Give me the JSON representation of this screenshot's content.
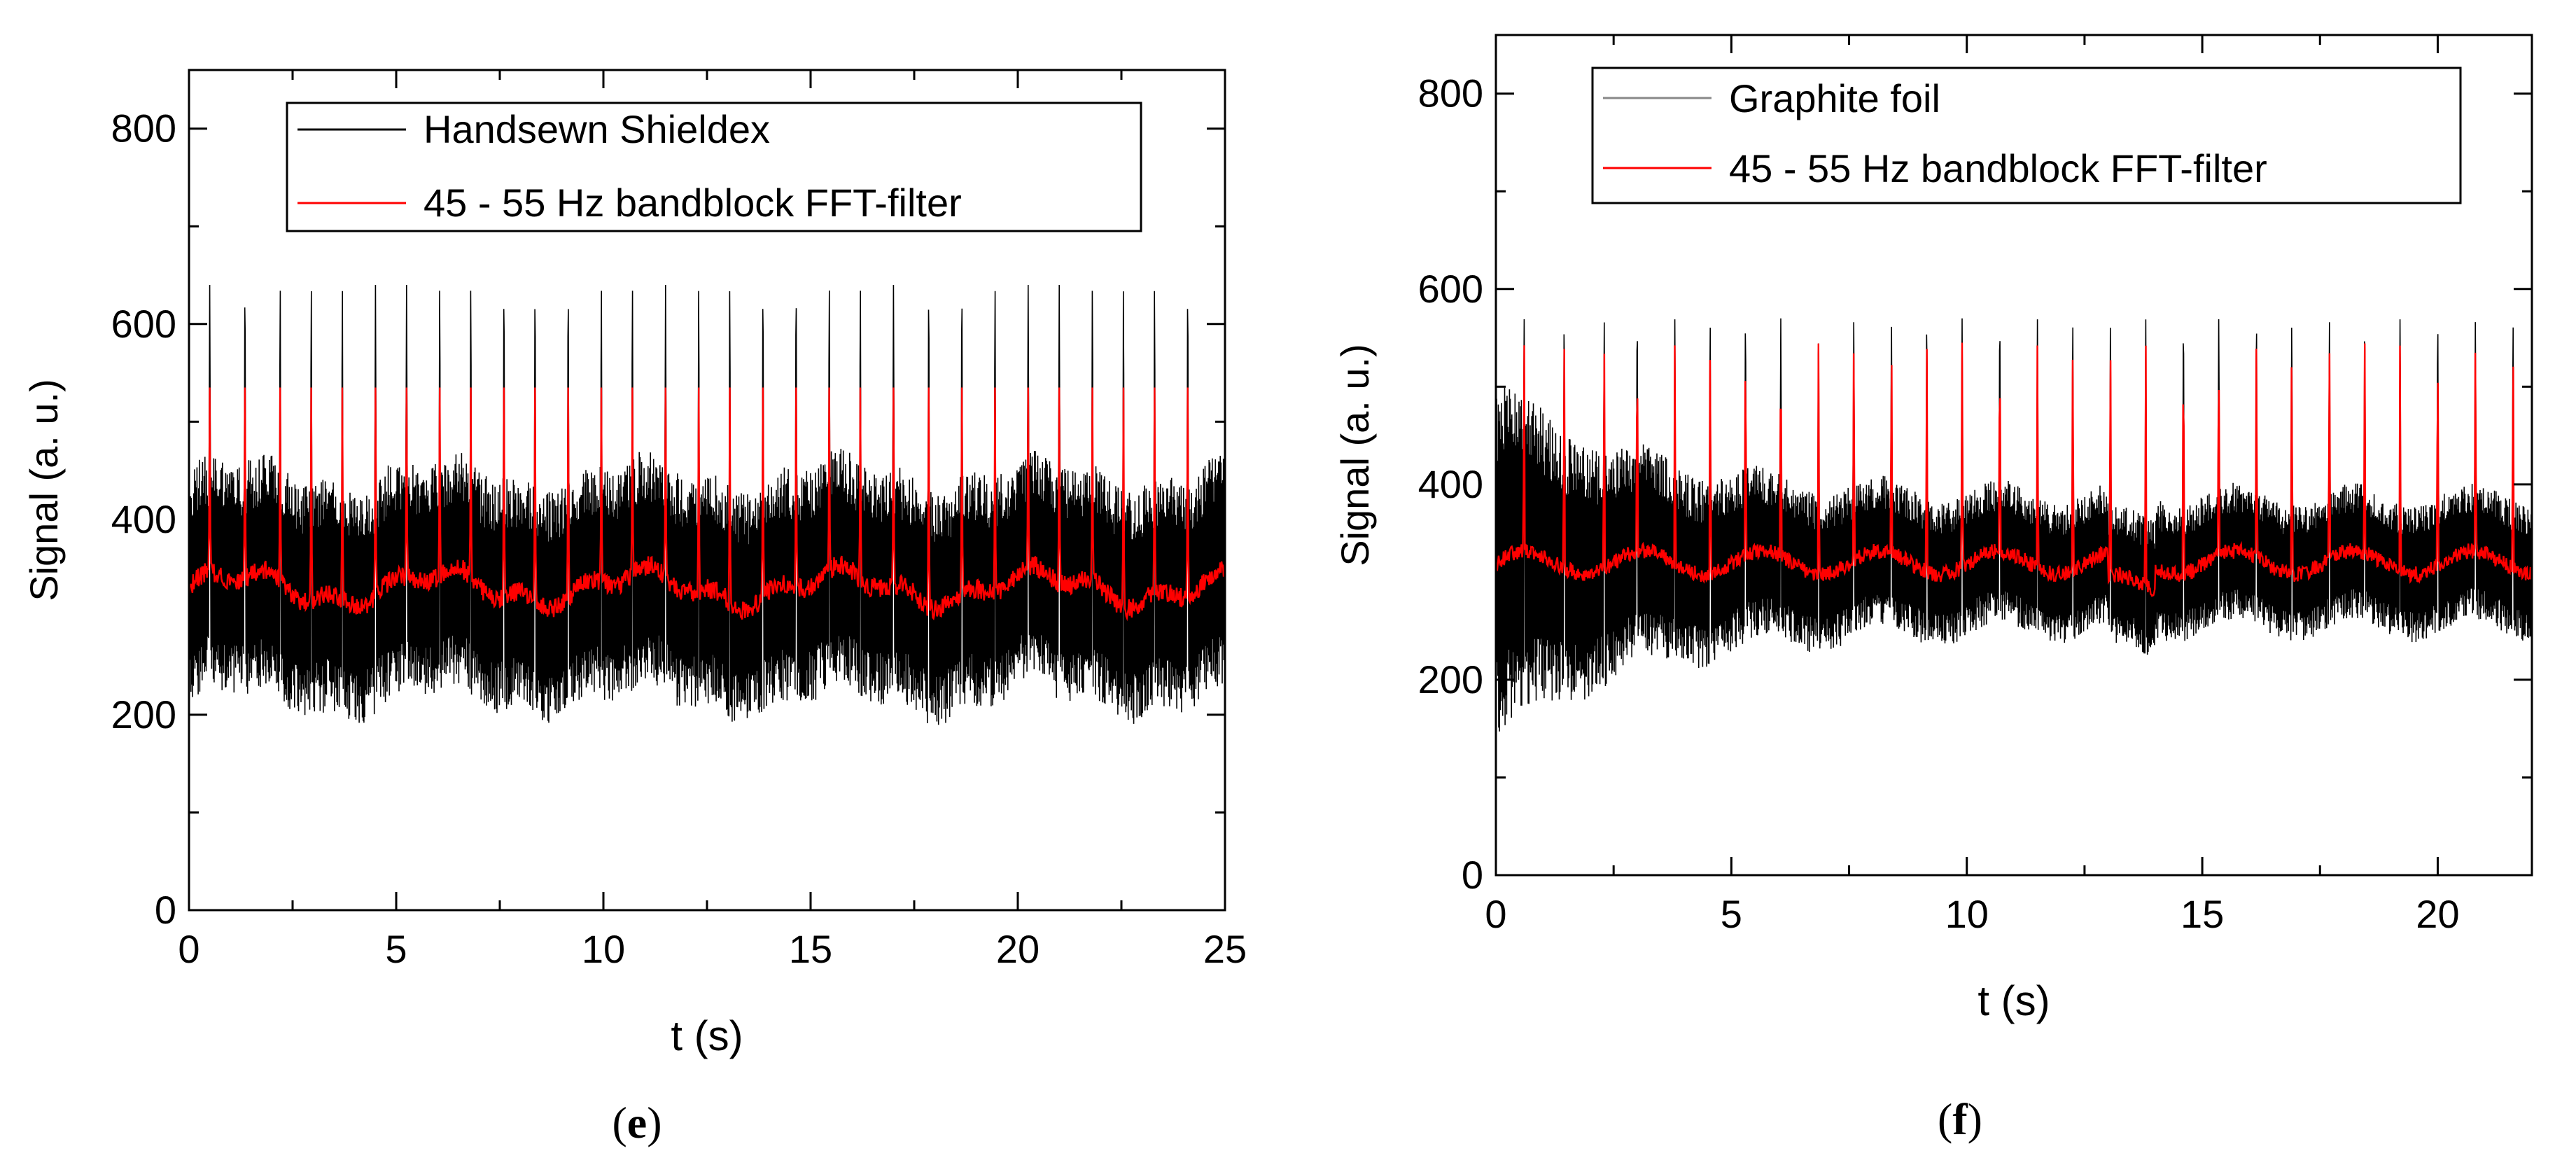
{
  "chart_data": [
    {
      "type": "line",
      "panel_label": "e",
      "xlabel": "t (s)",
      "ylabel": "Signal (a. u.)",
      "xlim": [
        0,
        25
      ],
      "ylim": [
        0,
        860
      ],
      "xticks": [
        0,
        5,
        10,
        15,
        20,
        25
      ],
      "yticks": [
        0,
        200,
        400,
        600,
        800
      ],
      "xtick_labels": [
        "0",
        "5",
        "10",
        "15",
        "20",
        "25"
      ],
      "ytick_labels": [
        "0",
        "200",
        "400",
        "600",
        "800"
      ],
      "grid": false,
      "legend_position": "top",
      "series": [
        {
          "name": "Handsewn Shieldex",
          "color": "#000000",
          "baseline": 330,
          "noise_halfwidth": 120,
          "drift": 0,
          "spike_peak": 640
        },
        {
          "name": "45 - 55 Hz bandblock FFT-filter",
          "color": "#ff0000",
          "baseline": 330,
          "noise_halfwidth": 10,
          "drift": 0,
          "spike_peak": 535
        }
      ],
      "spike_times": [
        0.5,
        1.35,
        2.2,
        2.95,
        3.7,
        4.5,
        5.25,
        6.05,
        6.8,
        7.6,
        8.35,
        9.15,
        9.95,
        10.7,
        11.5,
        12.3,
        13.05,
        13.85,
        14.65,
        15.45,
        16.2,
        17.0,
        17.85,
        18.65,
        19.45,
        20.25,
        21.0,
        21.8,
        22.55,
        23.3,
        24.1
      ]
    },
    {
      "type": "line",
      "panel_label": "f",
      "xlabel": "t (s)",
      "ylabel": "Signal (a. u.)",
      "xlim": [
        0,
        22
      ],
      "ylim": [
        0,
        860
      ],
      "xticks": [
        0,
        5,
        10,
        15,
        20
      ],
      "yticks": [
        0,
        200,
        400,
        600,
        800
      ],
      "xtick_labels": [
        "0",
        "5",
        "10",
        "15",
        "20"
      ],
      "ytick_labels": [
        "0",
        "200",
        "400",
        "600",
        "800"
      ],
      "grid": false,
      "legend_position": "top",
      "series": [
        {
          "name": "Graphite foil",
          "color": "#000000",
          "baseline": 320,
          "noise_halfwidth": 70,
          "drift": 1,
          "spike_peak": 570
        },
        {
          "name": "45 - 55 Hz bandblock FFT-filter",
          "color": "#ff0000",
          "baseline": 320,
          "noise_halfwidth": 8,
          "drift": 1,
          "spike_peak": 545
        }
      ],
      "spike_times": [
        0.6,
        1.45,
        2.3,
        3.0,
        3.8,
        4.55,
        5.3,
        6.05,
        6.85,
        7.6,
        8.4,
        9.15,
        9.9,
        10.7,
        11.5,
        12.25,
        13.05,
        13.8,
        14.6,
        15.35,
        16.15,
        16.9,
        17.7,
        18.45,
        19.2,
        20.0,
        20.8,
        21.6
      ]
    }
  ]
}
